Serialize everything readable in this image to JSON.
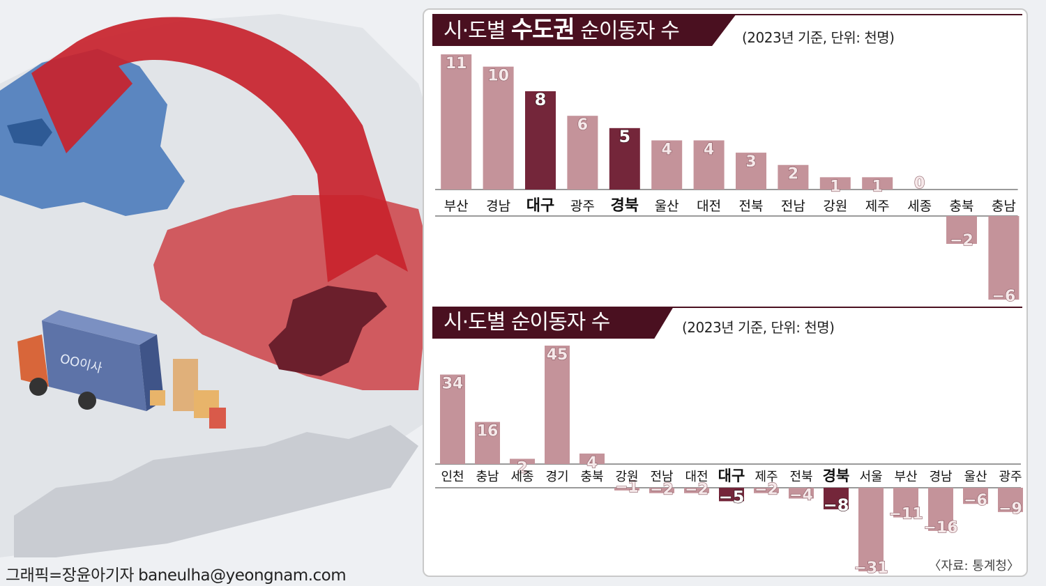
{
  "colors": {
    "bar": "#c4939a",
    "highlight": "#74263a",
    "title_bg": "#4a1020",
    "map_blue": "#5b86c0",
    "map_red": "#d05a5f",
    "map_dark": "#6b1f2c",
    "arrow": "#c8232c",
    "truck": "#5d73a8"
  },
  "credit": {
    "name": "그래픽=장윤아기자",
    "email": "baneulha@yeongnam.com"
  },
  "illustration": {
    "truck_label": "OO이사"
  },
  "chart1": {
    "title_pre": "시·도별 ",
    "title_bold": "수도권",
    "title_post": " 순이동자 수",
    "note": "(2023년 기준, 단위: 천명)"
  },
  "chart2": {
    "title": "시·도별 순이동자 수",
    "note": "(2023년 기준, 단위: 천명)"
  },
  "source": "〈자료: 통계청〉",
  "chart_data": [
    {
      "type": "bar",
      "title": "시·도별 수도권 순이동자 수",
      "subtitle": "(2023년 기준, 단위: 천명)",
      "categories": [
        "부산",
        "경남",
        "대구",
        "광주",
        "경북",
        "울산",
        "대전",
        "전북",
        "전남",
        "강원",
        "제주",
        "세종",
        "충북",
        "충남"
      ],
      "values": [
        11,
        10,
        8,
        6,
        5,
        4,
        4,
        3,
        2,
        1,
        1,
        0,
        -2,
        -6
      ],
      "labels": [
        "11",
        "10",
        "8",
        "6",
        "5",
        "4",
        "4",
        "3",
        "2",
        "1",
        "1",
        "0",
        "−2",
        "−6"
      ],
      "highlighted": [
        "대구",
        "경북"
      ],
      "grid": false
    },
    {
      "type": "bar",
      "title": "시·도별 순이동자 수",
      "subtitle": "(2023년 기준, 단위: 천명)",
      "categories": [
        "인천",
        "충남",
        "세종",
        "경기",
        "충북",
        "강원",
        "전남",
        "대전",
        "대구",
        "제주",
        "전북",
        "경북",
        "서울",
        "부산",
        "경남",
        "울산",
        "광주"
      ],
      "values": [
        34,
        16,
        2,
        45,
        4,
        -1,
        -2,
        -2,
        -5,
        -2,
        -4,
        -8,
        -31,
        -11,
        -16,
        -6,
        -9
      ],
      "labels": [
        "34",
        "16",
        "2",
        "45",
        "4",
        "−1",
        "−2",
        "−2",
        "−5",
        "−2",
        "−4",
        "−8",
        "−31",
        "−11",
        "−16",
        "−6",
        "−9"
      ],
      "highlighted": [
        "대구",
        "경북"
      ],
      "grid": false
    }
  ]
}
